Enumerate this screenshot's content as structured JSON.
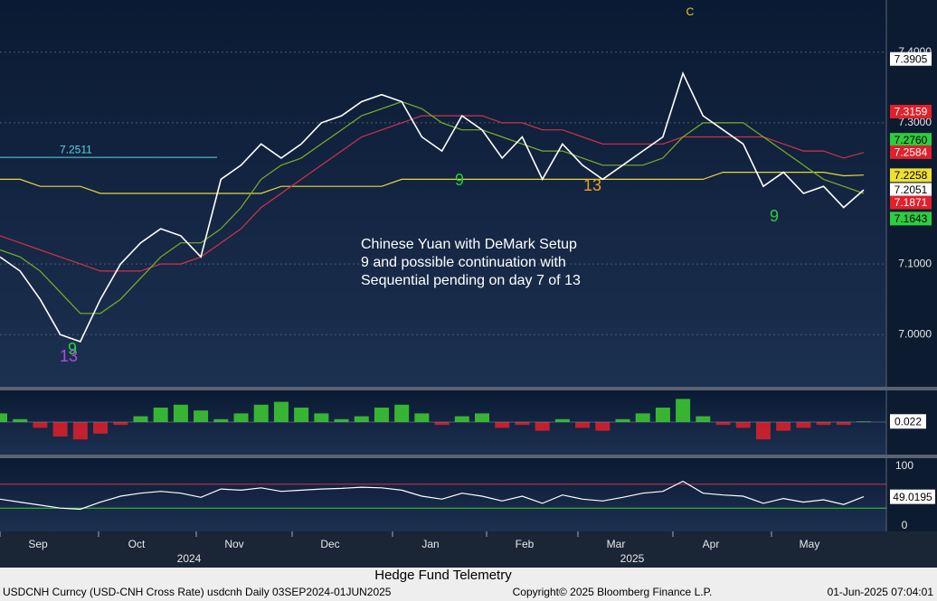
{
  "chart_data": {
    "type": "line",
    "annotation": "Chinese Yuan with DeMark Setup 9 and possible continuation with Sequential pending on day 7 of 13",
    "brand": "Hedge Fund Telemetry",
    "footer_left": "USDCNH Curncy (USD-CNH Cross Rate) usdcnh  Daily 03SEP2024-01JUN2025",
    "footer_center": "Copyright© 2025 Bloomberg Finance L.P.",
    "footer_right": "01-Jun-2025 07:04:01",
    "months": [
      "Sep",
      "Oct",
      "Nov",
      "Dec",
      "Jan",
      "Feb",
      "Mar",
      "Apr",
      "May"
    ],
    "years": [
      "2024",
      "2025"
    ],
    "ylim": [
      6.926,
      7.474
    ],
    "yticks": [
      {
        "value": 7,
        "label": "7.0000"
      },
      {
        "value": 7.1,
        "label": "7.1000"
      },
      {
        "value": 7.3,
        "label": "7.3000"
      },
      {
        "value": 7.4,
        "label": "7.4000"
      }
    ],
    "level": {
      "value": 7.2511,
      "label": "7.2511",
      "color": "#5fd3e6"
    },
    "series": [
      {
        "color": "#ffffff",
        "values": [
          7.11,
          7.09,
          7.05,
          7.0,
          6.99,
          7.05,
          7.1,
          7.13,
          7.15,
          7.14,
          7.11,
          7.22,
          7.24,
          7.27,
          7.25,
          7.27,
          7.3,
          7.31,
          7.33,
          7.34,
          7.33,
          7.28,
          7.26,
          7.31,
          7.29,
          7.25,
          7.28,
          7.22,
          7.27,
          7.24,
          7.22,
          7.24,
          7.26,
          7.28,
          7.37,
          7.31,
          7.29,
          7.27,
          7.21,
          7.23,
          7.2,
          7.21,
          7.18,
          7.205
        ]
      },
      {
        "color": "#7cae2a",
        "values": [
          7.12,
          7.11,
          7.09,
          7.06,
          7.03,
          7.03,
          7.05,
          7.08,
          7.11,
          7.13,
          7.13,
          7.15,
          7.18,
          7.22,
          7.24,
          7.25,
          7.27,
          7.29,
          7.31,
          7.32,
          7.33,
          7.32,
          7.3,
          7.29,
          7.29,
          7.28,
          7.27,
          7.26,
          7.26,
          7.25,
          7.24,
          7.24,
          7.24,
          7.25,
          7.28,
          7.3,
          7.3,
          7.3,
          7.28,
          7.26,
          7.24,
          7.22,
          7.21,
          7.2
        ]
      },
      {
        "color": "#d2314a",
        "values": [
          7.14,
          7.13,
          7.12,
          7.11,
          7.1,
          7.09,
          7.09,
          7.09,
          7.1,
          7.1,
          7.11,
          7.13,
          7.15,
          7.18,
          7.2,
          7.22,
          7.24,
          7.26,
          7.28,
          7.29,
          7.3,
          7.31,
          7.31,
          7.31,
          7.31,
          7.3,
          7.3,
          7.29,
          7.29,
          7.28,
          7.27,
          7.27,
          7.27,
          7.27,
          7.28,
          7.28,
          7.28,
          7.28,
          7.28,
          7.27,
          7.26,
          7.26,
          7.25,
          7.258
        ]
      },
      {
        "color": "#e8d83a",
        "values": [
          7.22,
          7.22,
          7.21,
          7.21,
          7.21,
          7.2,
          7.2,
          7.2,
          7.2,
          7.2,
          7.2,
          7.2,
          7.2,
          7.2,
          7.21,
          7.21,
          7.21,
          7.21,
          7.21,
          7.21,
          7.22,
          7.22,
          7.22,
          7.22,
          7.22,
          7.22,
          7.22,
          7.22,
          7.22,
          7.22,
          7.22,
          7.22,
          7.22,
          7.22,
          7.22,
          7.22,
          7.23,
          7.23,
          7.23,
          7.23,
          7.23,
          7.23,
          7.225,
          7.226
        ]
      }
    ],
    "price_tags": [
      {
        "value": 7.3905,
        "label": "7.3905",
        "color": "#ffffff"
      },
      {
        "value": 7.3159,
        "label": "7.3159",
        "color": "#e0202a"
      },
      {
        "value": 7.276,
        "label": "7.2760",
        "color": "#2ecc40"
      },
      {
        "value": 7.2584,
        "label": "7.2584",
        "color": "#e0202a"
      },
      {
        "value": 7.2258,
        "label": "7.2258",
        "color": "#f0e030"
      },
      {
        "value": 7.2051,
        "label": "7.2051",
        "color": "#ffffff"
      },
      {
        "value": 7.1871,
        "label": "7.1871",
        "color": "#e0202a"
      },
      {
        "value": 7.1643,
        "label": "7.1643",
        "color": "#2ecc40"
      }
    ],
    "counts": [
      {
        "text": "13",
        "color": "#b04ce0"
      },
      {
        "text": "9",
        "color": "#2ecc40"
      },
      {
        "text": "9",
        "color": "#2ecc40"
      },
      {
        "text": "13",
        "color": "#f0a020"
      },
      {
        "text": "9",
        "color": "#2ecc40"
      },
      {
        "text": "C",
        "color": "#f0d030"
      }
    ],
    "histogram": {
      "ylim": [
        -1,
        1
      ],
      "values": [
        0.3,
        0.1,
        -0.2,
        -0.5,
        -0.6,
        -0.4,
        -0.1,
        0.2,
        0.5,
        0.6,
        0.4,
        0.1,
        0.3,
        0.6,
        0.7,
        0.5,
        0.3,
        0.1,
        0.2,
        0.5,
        0.6,
        0.3,
        -0.1,
        0.2,
        0.3,
        -0.2,
        -0.1,
        -0.3,
        0.1,
        -0.2,
        -0.3,
        0.1,
        0.3,
        0.5,
        0.8,
        0.2,
        -0.1,
        -0.2,
        -0.6,
        -0.3,
        -0.2,
        -0.1,
        -0.1,
        0.022
      ],
      "last": {
        "value": 0.022,
        "label": "0.022"
      }
    },
    "rsi": {
      "ylim": [
        0,
        100
      ],
      "yticks": [
        0,
        100
      ],
      "overbought": 70,
      "oversold": 30,
      "values": [
        45,
        40,
        35,
        30,
        28,
        40,
        50,
        55,
        58,
        55,
        48,
        62,
        60,
        64,
        58,
        60,
        62,
        63,
        65,
        64,
        60,
        50,
        45,
        55,
        50,
        42,
        50,
        38,
        52,
        45,
        42,
        48,
        55,
        58,
        75,
        55,
        52,
        50,
        38,
        46,
        40,
        44,
        36,
        49.0195
      ],
      "last": 49.0195
    }
  }
}
